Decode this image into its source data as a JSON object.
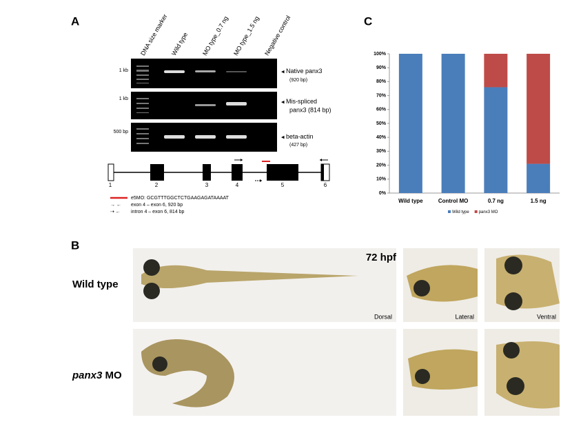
{
  "panel_letters": [
    "A",
    "B",
    "C"
  ],
  "panel_a": {
    "lanes": [
      "DNA size marker",
      "Wild type",
      "MO type_0.7 ng",
      "MO type_1.5 ng",
      "Negative control"
    ],
    "gels": [
      {
        "marker": "1 kb",
        "label": [
          "Native panx3",
          "(920 bp)"
        ]
      },
      {
        "marker": "1 kb",
        "label": [
          "Mis-spliced",
          "panx3 (814 bp)"
        ]
      },
      {
        "marker": "500 bp",
        "label": [
          "beta-actin",
          "(427 bp)"
        ]
      }
    ],
    "exons": [
      "1",
      "2",
      "3",
      "4",
      "5",
      "6"
    ],
    "legend": [
      "e5MO: GCGTTTGGCTCTGAAGAGATAAAAT",
      "exon 4 – exon 6, 920 bp",
      "intron 4 – exon 6, 814 bp"
    ]
  },
  "panel_b": {
    "stage": "72 hpf",
    "rows": [
      {
        "label": "Wild type"
      },
      {
        "gene": "panx3",
        "suffix": "MO"
      }
    ],
    "views": [
      "Dorsal",
      "Lateral",
      "Ventral"
    ]
  },
  "chart_data": {
    "type": "stacked_bar",
    "categories": [
      "Wild type",
      "Control MO",
      "0.7 ng",
      "1.5 ng"
    ],
    "series": [
      {
        "name": "Wild type",
        "color": "#4a7ebb",
        "values": [
          100,
          100,
          76,
          21
        ]
      },
      {
        "name": "panx3 MO",
        "color": "#be4b48",
        "values": [
          0,
          0,
          24,
          79
        ]
      }
    ],
    "ylim": [
      0,
      100
    ],
    "yticks": [
      {
        "value": 0,
        "label": "0%"
      },
      {
        "value": 10,
        "label": "10%"
      },
      {
        "value": 20,
        "label": "20%"
      },
      {
        "value": 30,
        "label": "30%"
      },
      {
        "value": 40,
        "label": "40%"
      },
      {
        "value": 50,
        "label": "50%"
      },
      {
        "value": 60,
        "label": "60%"
      },
      {
        "value": 70,
        "label": "70%"
      },
      {
        "value": 80,
        "label": "80%"
      },
      {
        "value": 90,
        "label": "90%"
      },
      {
        "value": 100,
        "label": "100%"
      }
    ],
    "legend": "bottom"
  }
}
